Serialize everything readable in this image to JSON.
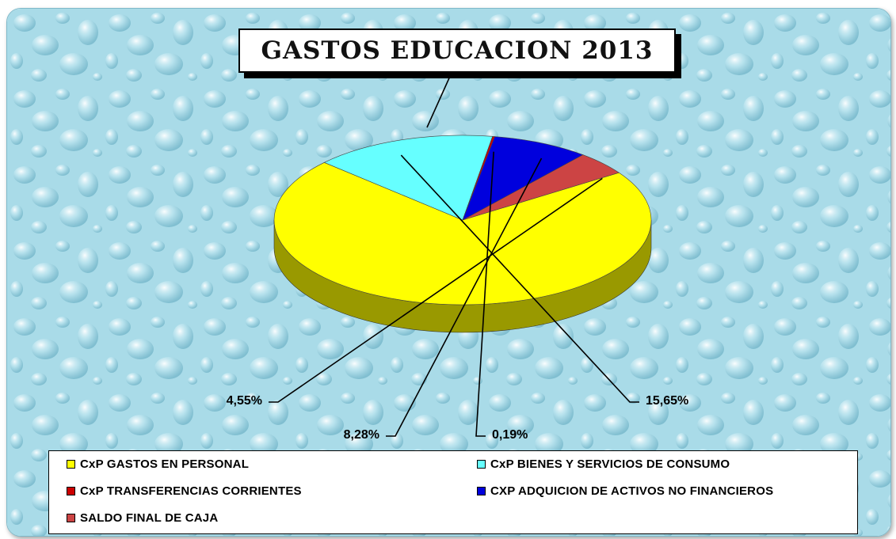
{
  "chart_data": {
    "type": "pie",
    "title": "GASTOS EDUCACION 2013",
    "slices": [
      {
        "label": "CxP GASTOS EN PERSONAL",
        "value": 71.33,
        "color": "#ffff00",
        "data_label": ""
      },
      {
        "label": "CxP BIENES Y SERVICIOS DE CONSUMO",
        "value": 15.65,
        "color": "#66ffff",
        "data_label": "15,65%"
      },
      {
        "label": "CxP TRANSFERENCIAS CORRIENTES",
        "value": 0.19,
        "color": "#cc0000",
        "data_label": "0,19%"
      },
      {
        "label": "CXP ADQUICION DE ACTIVOS NO FINANCIEROS",
        "value": 8.28,
        "color": "#0000dd",
        "data_label": "8,28%"
      },
      {
        "label": "SALDO FINAL DE CAJA",
        "value": 4.55,
        "color": "#cc4444",
        "data_label": "4,55%"
      }
    ],
    "legend_position": "bottom"
  }
}
